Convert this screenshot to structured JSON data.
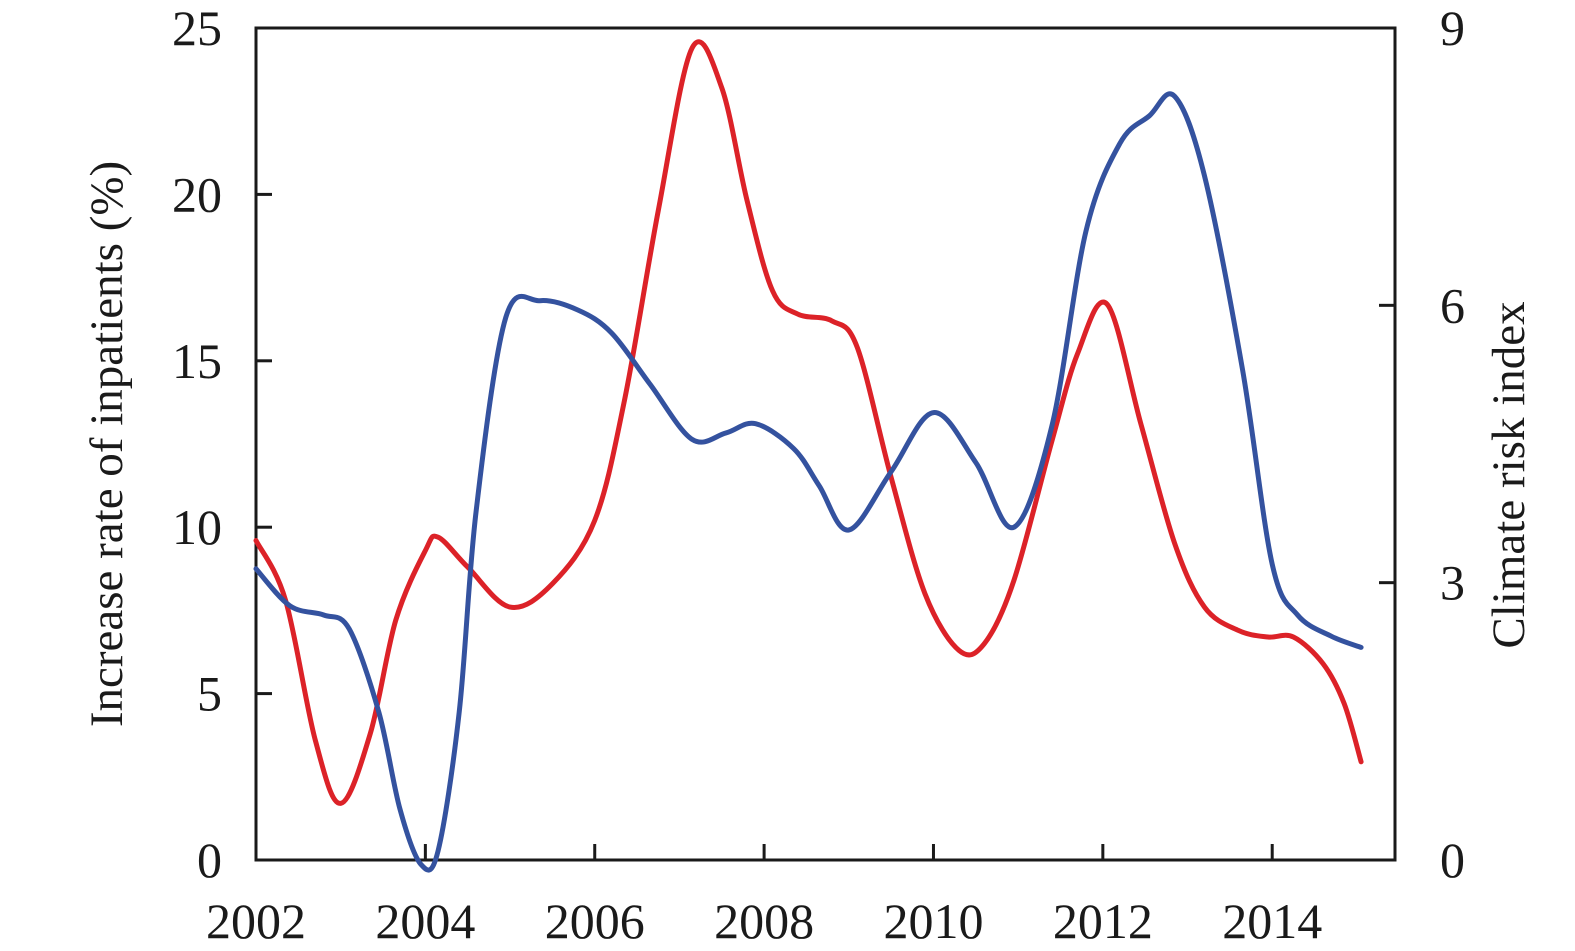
{
  "figure": {
    "left_axis": {
      "title": "Increase rate of inpatients (%)",
      "tick_labels": [
        "0",
        "5",
        "10",
        "15",
        "20",
        "25"
      ],
      "tick_values": [
        0,
        5,
        10,
        15,
        20,
        25
      ],
      "range": [
        0,
        25
      ]
    },
    "right_axis": {
      "title": "Climate risk index",
      "tick_labels": [
        "0",
        "3",
        "6",
        "9"
      ],
      "tick_values": [
        0,
        3,
        6,
        9
      ],
      "range": [
        0,
        9
      ]
    },
    "x_axis": {
      "tick_labels": [
        "2002",
        "2004",
        "2006",
        "2008",
        "2010",
        "2012",
        "2014"
      ],
      "tick_values": [
        2002,
        2004,
        2006,
        2008,
        2010,
        2012,
        2014
      ],
      "range": [
        2002,
        2015.45
      ]
    },
    "colors": {
      "red_line": "#dc2228",
      "blue_line": "#34529f",
      "axis": "#1a1a1a",
      "background": "#ffffff"
    }
  },
  "chart_data": {
    "type": "line",
    "title": "",
    "legend": "none",
    "grid": false,
    "x_range": [
      2002,
      2015.45
    ],
    "series": [
      {
        "name": "Increase rate of inpatients (%)",
        "axis": "left",
        "color": "#dc2228",
        "points": [
          [
            2002.0,
            9.6
          ],
          [
            2002.35,
            7.8
          ],
          [
            2002.7,
            3.6
          ],
          [
            2003.0,
            1.7
          ],
          [
            2003.35,
            3.8
          ],
          [
            2003.65,
            7.2
          ],
          [
            2004.0,
            9.3
          ],
          [
            2004.15,
            9.7
          ],
          [
            2004.5,
            8.8
          ],
          [
            2005.0,
            7.6
          ],
          [
            2005.5,
            8.3
          ],
          [
            2006.0,
            10.2
          ],
          [
            2006.35,
            13.8
          ],
          [
            2006.75,
            19.5
          ],
          [
            2007.15,
            24.4
          ],
          [
            2007.5,
            23.2
          ],
          [
            2007.8,
            19.8
          ],
          [
            2008.1,
            17.1
          ],
          [
            2008.4,
            16.4
          ],
          [
            2008.8,
            16.2
          ],
          [
            2009.1,
            15.4
          ],
          [
            2009.5,
            11.5
          ],
          [
            2009.9,
            8.0
          ],
          [
            2010.3,
            6.3
          ],
          [
            2010.6,
            6.5
          ],
          [
            2010.95,
            8.4
          ],
          [
            2011.4,
            12.6
          ],
          [
            2011.7,
            15.2
          ],
          [
            2012.05,
            16.7
          ],
          [
            2012.45,
            13.1
          ],
          [
            2012.85,
            9.5
          ],
          [
            2013.2,
            7.6
          ],
          [
            2013.6,
            6.9
          ],
          [
            2013.95,
            6.7
          ],
          [
            2014.25,
            6.7
          ],
          [
            2014.6,
            5.9
          ],
          [
            2014.85,
            4.7
          ],
          [
            2015.05,
            2.95
          ]
        ]
      },
      {
        "name": "Climate risk index",
        "axis": "right",
        "color": "#34529f",
        "points": [
          [
            2002.0,
            3.15
          ],
          [
            2002.4,
            2.75
          ],
          [
            2002.8,
            2.65
          ],
          [
            2003.1,
            2.5
          ],
          [
            2003.45,
            1.6
          ],
          [
            2003.7,
            0.55
          ],
          [
            2003.95,
            -0.05
          ],
          [
            2004.15,
            0.1
          ],
          [
            2004.4,
            1.6
          ],
          [
            2004.6,
            3.78
          ],
          [
            2004.95,
            5.87
          ],
          [
            2005.35,
            6.05
          ],
          [
            2005.8,
            5.95
          ],
          [
            2006.2,
            5.7
          ],
          [
            2006.65,
            5.15
          ],
          [
            2007.15,
            4.55
          ],
          [
            2007.55,
            4.62
          ],
          [
            2007.9,
            4.72
          ],
          [
            2008.35,
            4.45
          ],
          [
            2008.65,
            4.05
          ],
          [
            2009.0,
            3.57
          ],
          [
            2009.5,
            4.2
          ],
          [
            2010.0,
            4.84
          ],
          [
            2010.5,
            4.3
          ],
          [
            2010.95,
            3.6
          ],
          [
            2011.4,
            4.7
          ],
          [
            2011.8,
            6.8
          ],
          [
            2012.2,
            7.75
          ],
          [
            2012.55,
            8.05
          ],
          [
            2012.85,
            8.26
          ],
          [
            2013.2,
            7.4
          ],
          [
            2013.65,
            5.3
          ],
          [
            2014.0,
            3.2
          ],
          [
            2014.3,
            2.65
          ],
          [
            2014.7,
            2.42
          ],
          [
            2015.05,
            2.3
          ]
        ]
      }
    ]
  }
}
